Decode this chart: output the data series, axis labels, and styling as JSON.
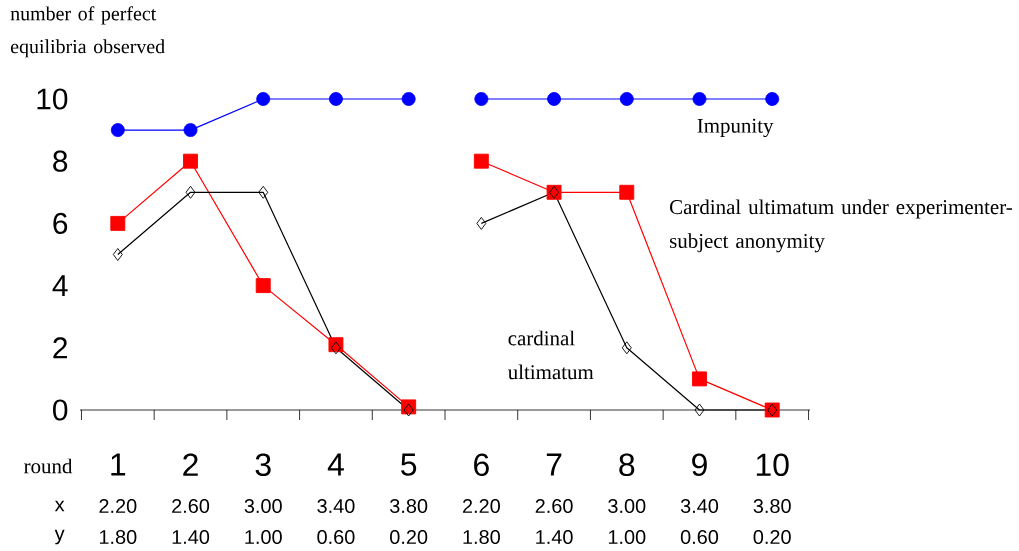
{
  "chart_data": {
    "type": "line",
    "xlabel": "round",
    "ylabel": "number of perfect equilibria observed",
    "categories": [
      "1",
      "2",
      "3",
      "4",
      "5",
      "6",
      "7",
      "8",
      "9",
      "10"
    ],
    "ylim": [
      0,
      10
    ],
    "yticks": [
      0,
      2,
      4,
      6,
      8,
      10
    ],
    "grid": false,
    "legend": false,
    "annotations": [
      "x",
      "2.20",
      "2.60",
      "3.00",
      "3.40",
      "3.80",
      "2.20",
      "2.60",
      "3.00",
      "3.40",
      "3.80",
      "y",
      "1.80",
      "1.40",
      "1.00",
      "0.60",
      "0.20",
      "1.80",
      "1.40",
      "1.00",
      "0.60",
      "0.20"
    ],
    "series": [
      {
        "name": "Impunity",
        "color": "#0000ff",
        "marker": "circle",
        "values": [
          9,
          9,
          10,
          10,
          10,
          null,
          null,
          null,
          null,
          null
        ]
      },
      {
        "color": "#0000ff",
        "marker": "circle",
        "values": [
          null,
          null,
          null,
          null,
          null,
          10,
          10,
          10,
          10,
          10
        ]
      },
      {
        "name": "Cardinal ultimatum under experimenter-subject anonymity",
        "color": "#ff0000",
        "marker": "square",
        "values": [
          6,
          8,
          4,
          2.1,
          0.1,
          null,
          null,
          null,
          null,
          null
        ]
      },
      {
        "color": "#ff0000",
        "marker": "square",
        "values": [
          null,
          null,
          null,
          null,
          null,
          8,
          7,
          7,
          1,
          0
        ]
      },
      {
        "name": "cardinal ultimatum",
        "color": "#000000",
        "marker": "diamond",
        "values": [
          5,
          7,
          7,
          2,
          0,
          null,
          null,
          null,
          null,
          null
        ]
      },
      {
        "color": "#000000",
        "marker": "diamond",
        "values": [
          null,
          null,
          null,
          null,
          null,
          6,
          7,
          2,
          0,
          0
        ]
      }
    ]
  }
}
